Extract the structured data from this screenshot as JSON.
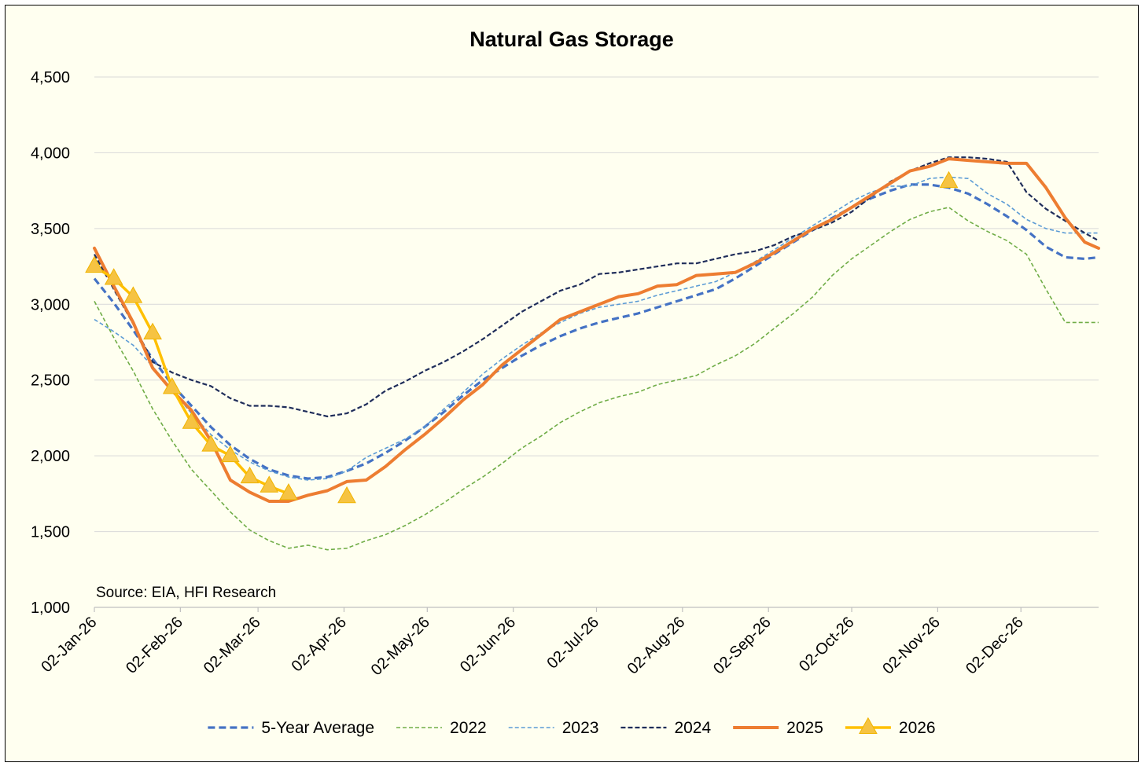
{
  "chart_data": {
    "type": "line",
    "title": "Natural Gas Storage",
    "xlabel": "",
    "ylabel": "",
    "ylim": [
      1000,
      4500
    ],
    "yticks": [
      1000,
      1500,
      2000,
      2500,
      3000,
      3500,
      4000,
      4500
    ],
    "ytick_labels": [
      "1,000",
      "1,500",
      "2,000",
      "2,500",
      "3,000",
      "3,500",
      "4,000",
      "4,500"
    ],
    "xlim": [
      "2026-01-02",
      "2026-12-30"
    ],
    "xticks": [
      "2026-01-02",
      "2026-02-02",
      "2026-03-02",
      "2026-04-02",
      "2026-05-02",
      "2026-06-02",
      "2026-07-02",
      "2026-08-02",
      "2026-09-02",
      "2026-10-02",
      "2026-11-02",
      "2026-12-02"
    ],
    "xtick_labels": [
      "02-Jan-26",
      "02-Feb-26",
      "02-Mar-26",
      "02-Apr-26",
      "02-May-26",
      "02-Jun-26",
      "02-Jul-26",
      "02-Aug-26",
      "02-Sep-26",
      "02-Oct-26",
      "02-Nov-26",
      "02-Dec-26"
    ],
    "grid": "horizontal",
    "legend_position": "bottom",
    "annotation": "Source: EIA, HFI Research",
    "series": [
      {
        "name": "5-Year Average",
        "color": "#4472c4",
        "style": "dashed-thick",
        "x": [
          "2026-01-02",
          "2026-01-09",
          "2026-01-16",
          "2026-01-23",
          "2026-01-30",
          "2026-02-06",
          "2026-02-13",
          "2026-02-20",
          "2026-02-27",
          "2026-03-06",
          "2026-03-13",
          "2026-03-20",
          "2026-03-27",
          "2026-04-03",
          "2026-04-10",
          "2026-04-17",
          "2026-04-24",
          "2026-05-01",
          "2026-05-08",
          "2026-05-15",
          "2026-05-22",
          "2026-05-29",
          "2026-06-05",
          "2026-06-12",
          "2026-06-19",
          "2026-06-26",
          "2026-07-03",
          "2026-07-10",
          "2026-07-17",
          "2026-07-24",
          "2026-07-31",
          "2026-08-07",
          "2026-08-14",
          "2026-08-21",
          "2026-08-28",
          "2026-09-04",
          "2026-09-11",
          "2026-09-18",
          "2026-09-25",
          "2026-10-02",
          "2026-10-09",
          "2026-10-16",
          "2026-10-23",
          "2026-10-30",
          "2026-11-06",
          "2026-11-13",
          "2026-11-20",
          "2026-11-27",
          "2026-12-04",
          "2026-12-11",
          "2026-12-18",
          "2026-12-25",
          "2026-12-30"
        ],
        "values": [
          3170,
          3010,
          2830,
          2640,
          2470,
          2330,
          2190,
          2070,
          1980,
          1910,
          1870,
          1850,
          1860,
          1900,
          1950,
          2020,
          2100,
          2190,
          2290,
          2400,
          2500,
          2580,
          2660,
          2730,
          2790,
          2840,
          2880,
          2910,
          2940,
          2980,
          3020,
          3060,
          3100,
          3170,
          3250,
          3330,
          3410,
          3490,
          3570,
          3640,
          3700,
          3750,
          3790,
          3790,
          3770,
          3730,
          3660,
          3580,
          3490,
          3380,
          3310,
          3300,
          3310
        ]
      },
      {
        "name": "2022",
        "color": "#70ad47",
        "style": "dashed-thin",
        "x": [
          "2026-01-02",
          "2026-01-09",
          "2026-01-16",
          "2026-01-23",
          "2026-01-30",
          "2026-02-06",
          "2026-02-13",
          "2026-02-20",
          "2026-02-27",
          "2026-03-06",
          "2026-03-13",
          "2026-03-20",
          "2026-03-27",
          "2026-04-03",
          "2026-04-10",
          "2026-04-17",
          "2026-04-24",
          "2026-05-01",
          "2026-05-08",
          "2026-05-15",
          "2026-05-22",
          "2026-05-29",
          "2026-06-05",
          "2026-06-12",
          "2026-06-19",
          "2026-06-26",
          "2026-07-03",
          "2026-07-10",
          "2026-07-17",
          "2026-07-24",
          "2026-07-31",
          "2026-08-07",
          "2026-08-14",
          "2026-08-21",
          "2026-08-28",
          "2026-09-04",
          "2026-09-11",
          "2026-09-18",
          "2026-09-25",
          "2026-10-02",
          "2026-10-09",
          "2026-10-16",
          "2026-10-23",
          "2026-10-30",
          "2026-11-06",
          "2026-11-13",
          "2026-11-20",
          "2026-11-27",
          "2026-12-04",
          "2026-12-11",
          "2026-12-18",
          "2026-12-25",
          "2026-12-30"
        ],
        "values": [
          3020,
          2780,
          2560,
          2310,
          2100,
          1910,
          1770,
          1630,
          1510,
          1440,
          1390,
          1410,
          1380,
          1390,
          1440,
          1480,
          1540,
          1610,
          1690,
          1780,
          1860,
          1950,
          2050,
          2130,
          2220,
          2290,
          2350,
          2390,
          2420,
          2470,
          2500,
          2530,
          2600,
          2660,
          2740,
          2840,
          2940,
          3050,
          3190,
          3300,
          3390,
          3480,
          3560,
          3610,
          3640,
          3550,
          3480,
          3420,
          3330,
          3100,
          2880,
          2880,
          2880
        ]
      },
      {
        "name": "2023",
        "color": "#5b9bd5",
        "style": "dashed-thin",
        "x": [
          "2026-01-02",
          "2026-01-09",
          "2026-01-16",
          "2026-01-23",
          "2026-01-30",
          "2026-02-06",
          "2026-02-13",
          "2026-02-20",
          "2026-02-27",
          "2026-03-06",
          "2026-03-13",
          "2026-03-20",
          "2026-03-27",
          "2026-04-03",
          "2026-04-10",
          "2026-04-17",
          "2026-04-24",
          "2026-05-01",
          "2026-05-08",
          "2026-05-15",
          "2026-05-22",
          "2026-05-29",
          "2026-06-05",
          "2026-06-12",
          "2026-06-19",
          "2026-06-26",
          "2026-07-03",
          "2026-07-10",
          "2026-07-17",
          "2026-07-24",
          "2026-07-31",
          "2026-08-07",
          "2026-08-14",
          "2026-08-21",
          "2026-08-28",
          "2026-09-04",
          "2026-09-11",
          "2026-09-18",
          "2026-09-25",
          "2026-10-02",
          "2026-10-09",
          "2026-10-16",
          "2026-10-23",
          "2026-10-30",
          "2026-11-06",
          "2026-11-13",
          "2026-11-20",
          "2026-11-27",
          "2026-12-04",
          "2026-12-11",
          "2026-12-18",
          "2026-12-25",
          "2026-12-30"
        ],
        "values": [
          2900,
          2820,
          2730,
          2590,
          2430,
          2280,
          2140,
          2040,
          1960,
          1900,
          1860,
          1840,
          1850,
          1900,
          1990,
          2050,
          2110,
          2190,
          2310,
          2420,
          2540,
          2640,
          2730,
          2810,
          2880,
          2940,
          2980,
          3000,
          3020,
          3060,
          3090,
          3120,
          3150,
          3210,
          3280,
          3360,
          3440,
          3520,
          3600,
          3680,
          3740,
          3780,
          3780,
          3830,
          3840,
          3830,
          3730,
          3660,
          3560,
          3500,
          3470,
          3470,
          3470
        ]
      },
      {
        "name": "2024",
        "color": "#1f2d5a",
        "style": "dashed-medium",
        "x": [
          "2026-01-02",
          "2026-01-09",
          "2026-01-16",
          "2026-01-23",
          "2026-01-30",
          "2026-02-06",
          "2026-02-13",
          "2026-02-20",
          "2026-02-27",
          "2026-03-06",
          "2026-03-13",
          "2026-03-20",
          "2026-03-27",
          "2026-04-03",
          "2026-04-10",
          "2026-04-17",
          "2026-04-24",
          "2026-05-01",
          "2026-05-08",
          "2026-05-15",
          "2026-05-22",
          "2026-05-29",
          "2026-06-05",
          "2026-06-12",
          "2026-06-19",
          "2026-06-26",
          "2026-07-03",
          "2026-07-10",
          "2026-07-17",
          "2026-07-24",
          "2026-07-31",
          "2026-08-07",
          "2026-08-14",
          "2026-08-21",
          "2026-08-28",
          "2026-09-04",
          "2026-09-11",
          "2026-09-18",
          "2026-09-25",
          "2026-10-02",
          "2026-10-09",
          "2026-10-16",
          "2026-10-23",
          "2026-10-30",
          "2026-11-06",
          "2026-11-13",
          "2026-11-20",
          "2026-11-27",
          "2026-12-04",
          "2026-12-11",
          "2026-12-18",
          "2026-12-25",
          "2026-12-30"
        ],
        "values": [
          3330,
          3100,
          2870,
          2620,
          2550,
          2500,
          2460,
          2380,
          2330,
          2330,
          2320,
          2290,
          2260,
          2280,
          2340,
          2430,
          2490,
          2560,
          2620,
          2690,
          2770,
          2860,
          2950,
          3020,
          3090,
          3130,
          3200,
          3210,
          3230,
          3250,
          3270,
          3270,
          3300,
          3330,
          3350,
          3390,
          3450,
          3490,
          3540,
          3610,
          3710,
          3810,
          3880,
          3930,
          3970,
          3970,
          3960,
          3940,
          3740,
          3630,
          3550,
          3470,
          3420
        ]
      },
      {
        "name": "2025",
        "color": "#ed7d31",
        "style": "solid-thick",
        "x": [
          "2026-01-02",
          "2026-01-09",
          "2026-01-16",
          "2026-01-23",
          "2026-01-30",
          "2026-02-06",
          "2026-02-13",
          "2026-02-20",
          "2026-02-27",
          "2026-03-06",
          "2026-03-13",
          "2026-03-20",
          "2026-03-27",
          "2026-04-03",
          "2026-04-10",
          "2026-04-17",
          "2026-04-24",
          "2026-05-01",
          "2026-05-08",
          "2026-05-15",
          "2026-05-22",
          "2026-05-29",
          "2026-06-05",
          "2026-06-12",
          "2026-06-19",
          "2026-06-26",
          "2026-07-03",
          "2026-07-10",
          "2026-07-17",
          "2026-07-24",
          "2026-07-31",
          "2026-08-07",
          "2026-08-14",
          "2026-08-21",
          "2026-08-28",
          "2026-09-04",
          "2026-09-11",
          "2026-09-18",
          "2026-09-25",
          "2026-10-02",
          "2026-10-09",
          "2026-10-16",
          "2026-10-23",
          "2026-10-30",
          "2026-11-06",
          "2026-11-13",
          "2026-11-20",
          "2026-11-27",
          "2026-12-04",
          "2026-12-11",
          "2026-12-18",
          "2026-12-25",
          "2026-12-30"
        ],
        "values": [
          3370,
          3120,
          2880,
          2580,
          2430,
          2300,
          2100,
          1840,
          1760,
          1700,
          1700,
          1740,
          1770,
          1830,
          1840,
          1930,
          2040,
          2140,
          2250,
          2370,
          2470,
          2600,
          2700,
          2800,
          2900,
          2950,
          3000,
          3050,
          3070,
          3120,
          3130,
          3190,
          3200,
          3210,
          3270,
          3340,
          3420,
          3500,
          3560,
          3640,
          3720,
          3800,
          3880,
          3910,
          3960,
          3950,
          3940,
          3930,
          3930,
          3770,
          3570,
          3410,
          3370
        ]
      },
      {
        "name": "2026",
        "color": "#ffc000",
        "style": "solid-triangle",
        "x": [
          "2026-01-02",
          "2026-01-09",
          "2026-01-16",
          "2026-01-23",
          "2026-01-30",
          "2026-02-06",
          "2026-02-13",
          "2026-02-20",
          "2026-02-27",
          "2026-03-06",
          "2026-03-13"
        ],
        "values": [
          3250,
          3170,
          3050,
          2810,
          2450,
          2220,
          2070,
          2000,
          1860,
          1800,
          1750
        ],
        "extra_points": [
          {
            "x": "2026-04-03",
            "value": 1730
          },
          {
            "x": "2026-11-06",
            "value": 3810
          }
        ]
      }
    ]
  }
}
